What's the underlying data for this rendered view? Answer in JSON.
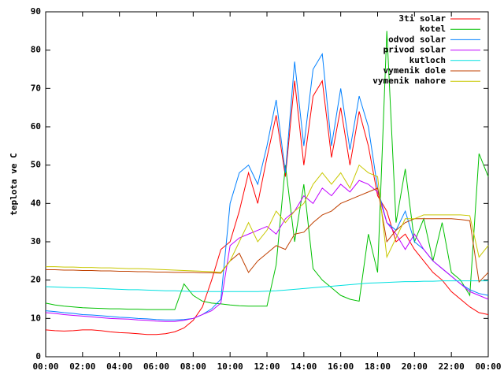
{
  "chart_data": {
    "type": "line",
    "ylabel": "teplota ve C",
    "x": [
      0,
      0.5,
      1,
      1.5,
      2,
      2.5,
      3,
      3.5,
      4,
      4.5,
      5,
      5.5,
      6,
      6.5,
      7,
      7.5,
      8,
      8.5,
      9,
      9.5,
      10,
      10.5,
      11,
      11.5,
      12,
      12.5,
      13,
      13.5,
      14,
      14.5,
      15,
      15.5,
      16,
      16.5,
      17,
      17.5,
      18,
      18.5,
      19,
      19.5,
      20,
      20.5,
      21,
      21.5,
      22,
      22.5,
      23,
      23.5,
      24
    ],
    "xlim": [
      0,
      24
    ],
    "xticks": [
      {
        "value": 0,
        "label": "00:00"
      },
      {
        "value": 2,
        "label": "02:00"
      },
      {
        "value": 4,
        "label": "04:00"
      },
      {
        "value": 6,
        "label": "06:00"
      },
      {
        "value": 8,
        "label": "08:00"
      },
      {
        "value": 10,
        "label": "10:00"
      },
      {
        "value": 12,
        "label": "12:00"
      },
      {
        "value": 14,
        "label": "14:00"
      },
      {
        "value": 16,
        "label": "16:00"
      },
      {
        "value": 18,
        "label": "18:00"
      },
      {
        "value": 20,
        "label": "20:00"
      },
      {
        "value": 22,
        "label": "22:00"
      },
      {
        "value": 24,
        "label": "00:00"
      }
    ],
    "ylim": [
      0,
      90
    ],
    "yticks": [
      0,
      10,
      20,
      30,
      40,
      50,
      60,
      70,
      80,
      90
    ],
    "legend": "top-right",
    "series": [
      {
        "name": "3ti solar",
        "color": "#ff0000",
        "values": [
          7,
          6.8,
          6.7,
          6.8,
          7,
          7,
          6.8,
          6.5,
          6.3,
          6.2,
          6,
          5.8,
          5.8,
          6,
          6.5,
          7.5,
          9.5,
          13,
          20,
          28,
          30,
          38,
          48,
          40,
          52,
          63,
          47,
          72,
          50,
          68,
          72,
          52,
          65,
          50,
          64,
          55,
          42,
          38,
          30,
          32,
          28,
          25,
          22,
          20,
          17,
          15,
          13,
          11.5,
          11
        ]
      },
      {
        "name": "kotel",
        "color": "#00c000",
        "values": [
          14,
          13.5,
          13.2,
          13,
          12.8,
          12.7,
          12.6,
          12.5,
          12.5,
          12.4,
          12.4,
          12.3,
          12.3,
          12.3,
          12.3,
          19,
          16,
          14.5,
          14,
          13.8,
          13.5,
          13.3,
          13.2,
          13.2,
          13.2,
          24,
          50,
          30,
          45,
          23,
          20,
          18,
          16,
          15,
          14.5,
          32,
          22,
          85,
          35,
          49,
          30,
          36,
          25,
          35,
          22,
          20,
          16,
          53,
          47
        ]
      },
      {
        "name": "odvod solar",
        "color": "#0080ff",
        "values": [
          12,
          11.8,
          11.5,
          11.3,
          11,
          10.9,
          10.7,
          10.5,
          10.3,
          10.2,
          10,
          9.9,
          9.7,
          9.6,
          9.6,
          9.7,
          10,
          11,
          12.5,
          15,
          40,
          48,
          50,
          45,
          55,
          67,
          48,
          77,
          55,
          75,
          79,
          55,
          70,
          54,
          68,
          60,
          44,
          35,
          33,
          38,
          30,
          28,
          25,
          23,
          21,
          19,
          17.5,
          16.5,
          16
        ]
      },
      {
        "name": "privod solar",
        "color": "#c000ff",
        "values": [
          11.5,
          11.3,
          11,
          10.8,
          10.6,
          10.4,
          10.2,
          10,
          9.9,
          9.8,
          9.6,
          9.5,
          9.3,
          9.2,
          9.2,
          9.5,
          10,
          11,
          12,
          14,
          29,
          31,
          32,
          33,
          34,
          32,
          36,
          38,
          42,
          40,
          44,
          42,
          45,
          43,
          46,
          45,
          43,
          35,
          32,
          28,
          32,
          28,
          25,
          23,
          21,
          19,
          17,
          16,
          15
        ]
      },
      {
        "name": "kutloch",
        "color": "#00e0e0",
        "values": [
          18.3,
          18.2,
          18.1,
          18,
          18,
          17.9,
          17.8,
          17.7,
          17.6,
          17.5,
          17.5,
          17.4,
          17.3,
          17.2,
          17.2,
          17.1,
          17,
          17,
          17,
          17,
          17,
          17,
          17,
          17,
          17.1,
          17.2,
          17.4,
          17.6,
          17.8,
          18,
          18.2,
          18.4,
          18.6,
          18.8,
          19,
          19.2,
          19.3,
          19.4,
          19.5,
          19.6,
          19.6,
          19.7,
          19.7,
          19.8,
          19.8,
          19.8,
          19.8,
          19.8,
          19.8
        ]
      },
      {
        "name": "vymenik dole",
        "color": "#c04000",
        "values": [
          22.7,
          22.7,
          22.6,
          22.6,
          22.5,
          22.5,
          22.4,
          22.4,
          22.3,
          22.3,
          22.2,
          22.2,
          22.1,
          22.1,
          22,
          22,
          22,
          21.9,
          21.9,
          21.8,
          25,
          27,
          22,
          25,
          27,
          29,
          28,
          32,
          32.5,
          35,
          37,
          38,
          40,
          41,
          42,
          43,
          44,
          30,
          33,
          35,
          36,
          36,
          36,
          36,
          36,
          35.8,
          35.5,
          19.5,
          22
        ]
      },
      {
        "name": "vymenik nahore",
        "color": "#c8c800",
        "values": [
          23.5,
          23.5,
          23.4,
          23.4,
          23.3,
          23.3,
          23.2,
          23.2,
          23.1,
          23,
          23,
          22.9,
          22.8,
          22.7,
          22.6,
          22.5,
          22.4,
          22.3,
          22.2,
          22,
          25,
          30,
          35,
          30,
          33,
          38,
          35,
          38,
          40,
          45,
          48,
          45,
          48,
          44,
          50,
          48,
          47,
          26,
          31,
          36,
          36,
          37,
          37,
          37,
          37,
          37,
          36.8,
          26,
          29
        ]
      }
    ]
  }
}
